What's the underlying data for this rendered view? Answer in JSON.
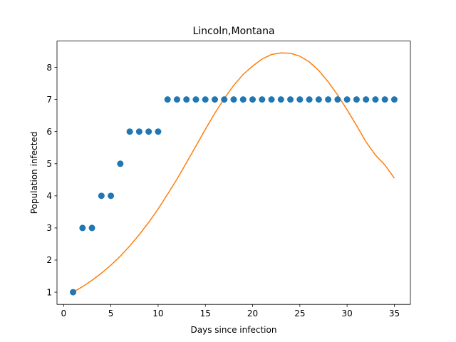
{
  "chart_data": {
    "type": "scatter+line",
    "title": "Lincoln,Montana",
    "xlabel": "Days since infection",
    "ylabel": "Population infected",
    "xlim": [
      -0.7,
      36.7
    ],
    "ylim": [
      0.62,
      8.82
    ],
    "xticks": [
      0,
      5,
      10,
      15,
      20,
      25,
      30,
      35
    ],
    "yticks": [
      1,
      2,
      3,
      4,
      5,
      6,
      7,
      8
    ],
    "grid": false,
    "legend": "none",
    "series": [
      {
        "kind": "scatter",
        "color": "#1f77b4",
        "x": [
          1,
          2,
          3,
          4,
          5,
          6,
          7,
          8,
          9,
          10,
          11,
          12,
          13,
          14,
          15,
          16,
          17,
          18,
          19,
          20,
          21,
          22,
          23,
          24,
          25,
          26,
          27,
          28,
          29,
          30,
          31,
          32,
          33,
          34,
          35
        ],
        "y": [
          1,
          3,
          3,
          4,
          4,
          5,
          6,
          6,
          6,
          6,
          7,
          7,
          7,
          7,
          7,
          7,
          7,
          7,
          7,
          7,
          7,
          7,
          7,
          7,
          7,
          7,
          7,
          7,
          7,
          7,
          7,
          7,
          7,
          7,
          7
        ]
      },
      {
        "kind": "line",
        "color": "#ff7f0e",
        "x": [
          1,
          2,
          3,
          4,
          5,
          6,
          7,
          8,
          9,
          10,
          11,
          12,
          13,
          14,
          15,
          16,
          17,
          18,
          19,
          20,
          21,
          22,
          23,
          24,
          25,
          26,
          27,
          28,
          29,
          30,
          31,
          32,
          33,
          34,
          35
        ],
        "y": [
          1.0,
          1.17,
          1.37,
          1.59,
          1.84,
          2.12,
          2.44,
          2.79,
          3.17,
          3.59,
          4.05,
          4.52,
          5.03,
          5.55,
          6.07,
          6.57,
          7.03,
          7.44,
          7.78,
          8.04,
          8.26,
          8.4,
          8.45,
          8.44,
          8.35,
          8.17,
          7.9,
          7.55,
          7.14,
          6.68,
          6.19,
          5.68,
          5.27,
          4.96,
          4.55
        ]
      }
    ]
  }
}
